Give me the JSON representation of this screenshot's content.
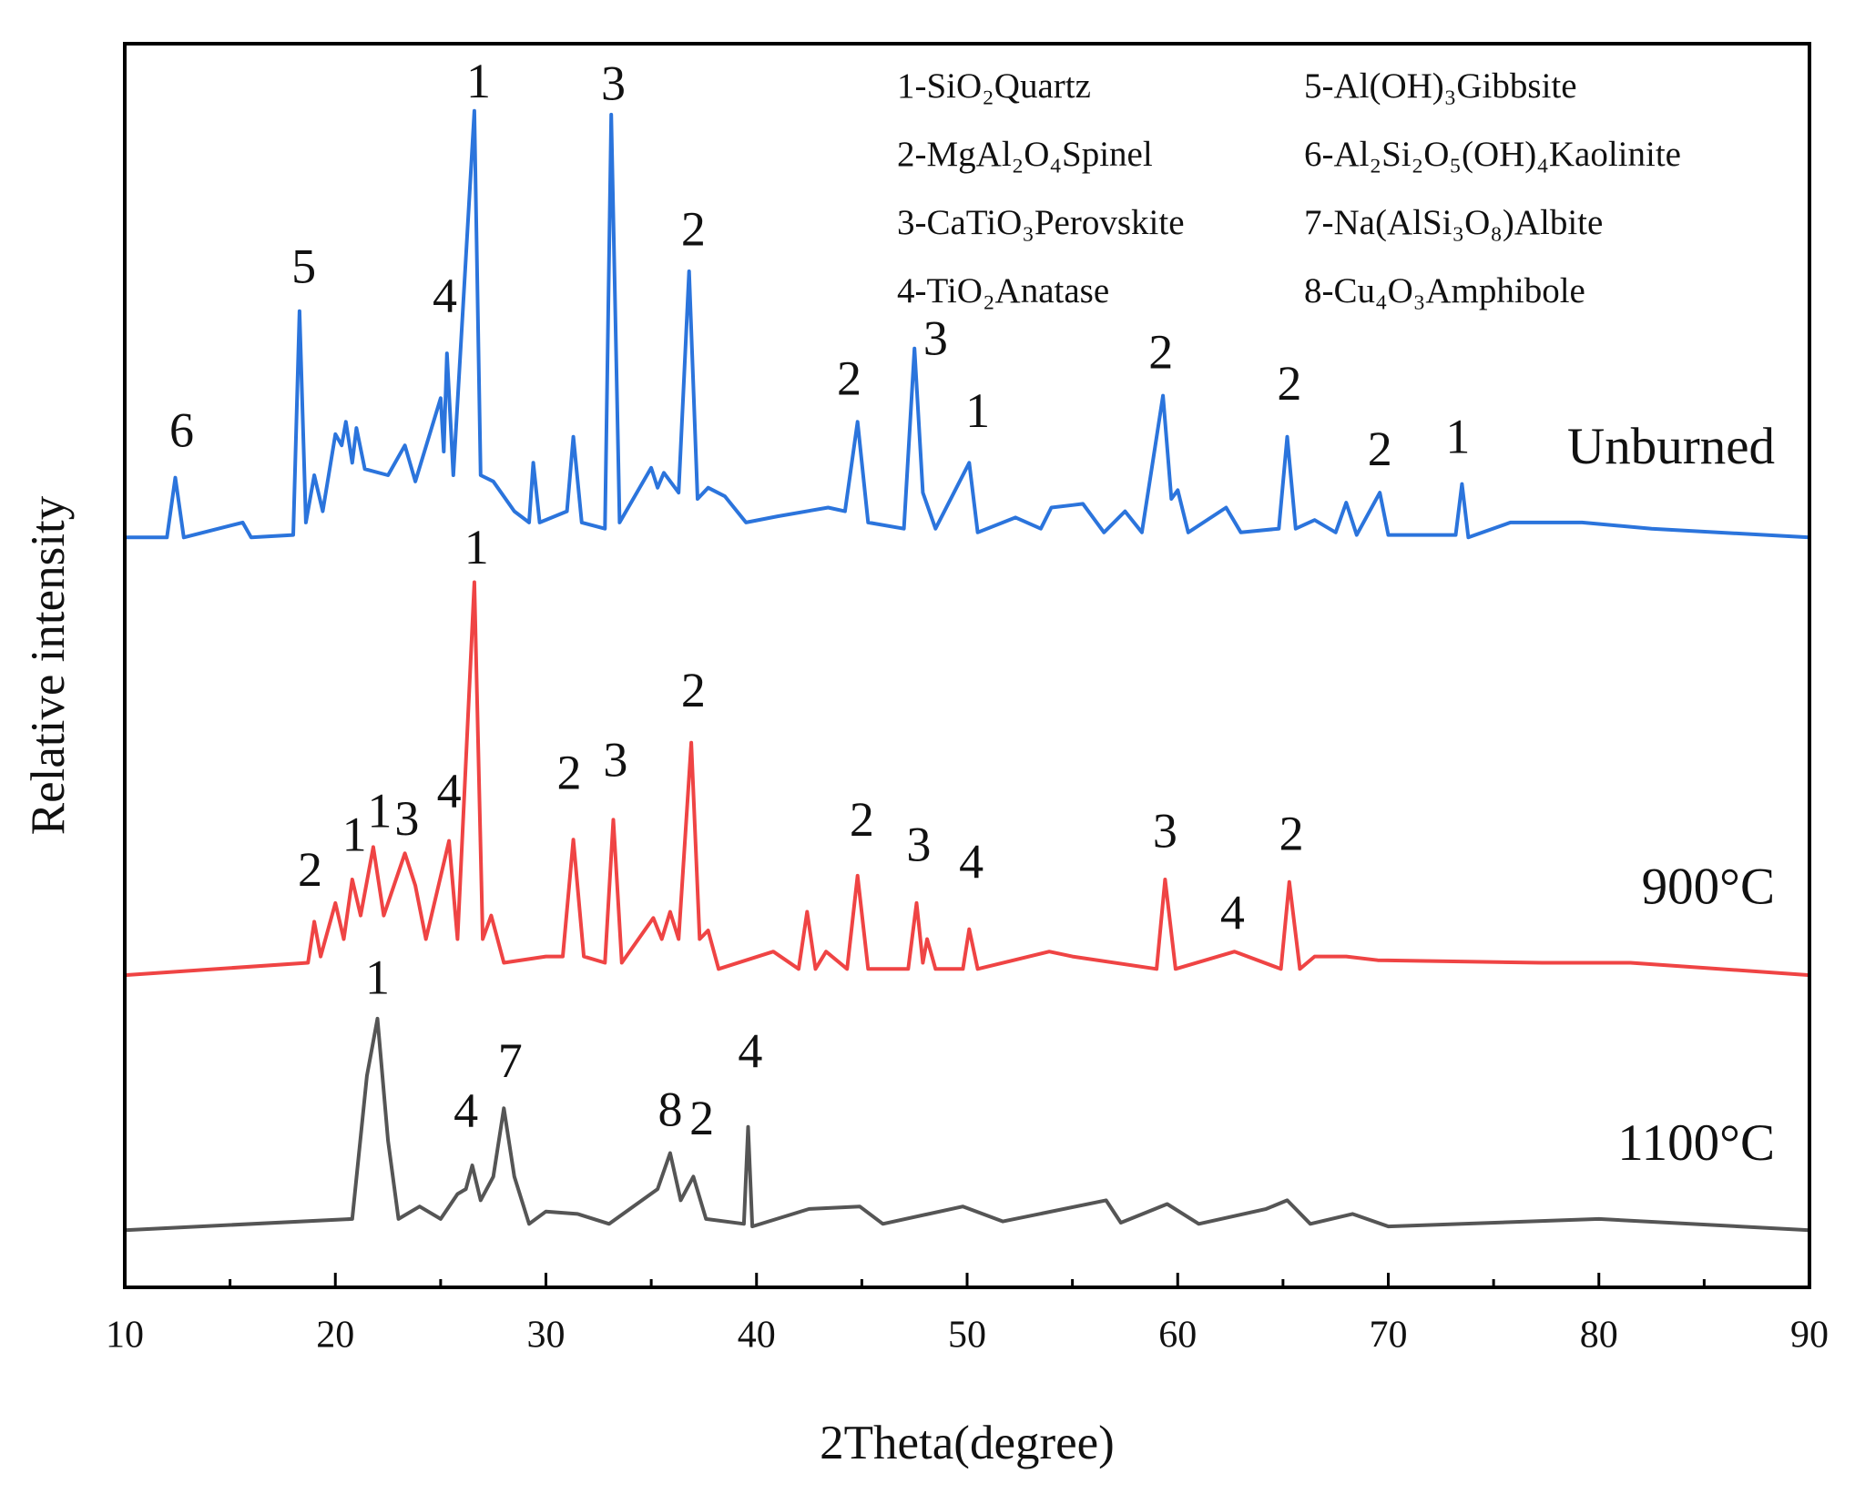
{
  "chart_data": {
    "type": "line",
    "x_label": "2Theta(degree)",
    "y_label": "Relative intensity",
    "xlim": [
      10,
      90
    ],
    "xticks": [
      10,
      20,
      30,
      40,
      50,
      60,
      70,
      80,
      90
    ],
    "xminorticks": [
      15,
      25,
      35,
      45,
      55,
      65,
      75,
      85
    ],
    "ylim": [
      0,
      100
    ],
    "legend_entries": [
      "1-SiO₂Quartz",
      "2-MgAl₂O₄Spinel",
      "3-CaTiO₃Perovskite",
      "4-TiO₂Anatase",
      "5-Al(OH)₃Gibbsite",
      "6-Al₂Si₂O₅(OH)₄Kaolinite",
      "7-Na(AlSi₃O₈)Albite",
      "8-Cu₄O₃Amphibole"
    ],
    "series": [
      {
        "name": "Unburned",
        "color": "#2b74dc",
        "x": [
          10,
          12.0,
          12.4,
          12.8,
          15.6,
          16,
          18.0,
          18.3,
          18.6,
          19.0,
          19.4,
          20.0,
          20.3,
          20.5,
          20.8,
          21.0,
          21.4,
          22.5,
          23.3,
          23.8,
          25.0,
          25.15,
          25.3,
          25.6,
          26.6,
          26.9,
          27.5,
          28.5,
          29.2,
          29.4,
          29.7,
          31.0,
          31.3,
          31.7,
          32.8,
          33.1,
          33.5,
          35.0,
          35.3,
          35.6,
          36.3,
          36.8,
          37.2,
          37.7,
          38.5,
          39.5,
          41,
          43.4,
          44.2,
          44.8,
          45.3,
          47.0,
          47.5,
          47.9,
          48.5,
          50.1,
          50.5,
          52.3,
          53.5,
          54,
          55,
          55.5,
          56.5,
          57.5,
          58.3,
          59.3,
          59.7,
          60.0,
          60.5,
          62.3,
          63,
          64.8,
          65.2,
          65.6,
          66.5,
          67.5,
          68,
          68.5,
          69.6,
          70,
          73.2,
          73.5,
          73.8,
          75.8,
          77.2,
          79.2,
          82.5,
          90
        ],
        "values": [
          60.3,
          60.3,
          65.1,
          60.3,
          61.5,
          60.3,
          60.5,
          78.5,
          61.5,
          65.3,
          62.4,
          68.6,
          67.7,
          69.6,
          66.3,
          69.1,
          65.8,
          65.3,
          67.7,
          64.8,
          71.5,
          67.2,
          75.1,
          65.3,
          94.6,
          65.3,
          64.8,
          62.4,
          61.5,
          66.3,
          61.5,
          62.4,
          68.4,
          61.5,
          61.0,
          94.3,
          61.5,
          65.9,
          64.3,
          65.5,
          63.9,
          81.7,
          63.4,
          64.3,
          63.6,
          61.5,
          62.0,
          62.7,
          62.4,
          69.6,
          61.5,
          61.0,
          75.5,
          63.9,
          61.0,
          66.3,
          60.7,
          61.9,
          61.0,
          62.7,
          62.9,
          63.0,
          60.7,
          62.4,
          60.7,
          71.7,
          63.4,
          64.1,
          60.7,
          62.7,
          60.7,
          61.0,
          68.4,
          61.0,
          61.7,
          60.7,
          63.1,
          60.5,
          63.9,
          60.5,
          60.5,
          64.6,
          60.3,
          61.5,
          61.5,
          61.5,
          61.0,
          60.3
        ],
        "peak_labels": [
          {
            "text": "6",
            "x": 12.7,
            "y": 68.5
          },
          {
            "text": "5",
            "x": 18.5,
            "y": 81.7
          },
          {
            "text": "4",
            "x": 25.2,
            "y": 79.3
          },
          {
            "text": "1",
            "x": 26.8,
            "y": 96.6
          },
          {
            "text": "3",
            "x": 33.2,
            "y": 96.4
          },
          {
            "text": "2",
            "x": 37.0,
            "y": 84.7
          },
          {
            "text": "2",
            "x": 44.4,
            "y": 72.7
          },
          {
            "text": "3",
            "x": 48.5,
            "y": 75.9
          },
          {
            "text": "1",
            "x": 50.5,
            "y": 70.1
          },
          {
            "text": "2",
            "x": 59.2,
            "y": 74.8
          },
          {
            "text": "2",
            "x": 65.3,
            "y": 72.3
          },
          {
            "text": "2",
            "x": 69.6,
            "y": 67.0
          },
          {
            "text": "1",
            "x": 73.3,
            "y": 68.0
          }
        ]
      },
      {
        "name": "900°C",
        "color": "#ef4444",
        "x": [
          10,
          18.7,
          19.0,
          19.3,
          20.0,
          20.4,
          20.8,
          21.2,
          21.8,
          22.3,
          23.3,
          23.8,
          24.3,
          25.4,
          25.8,
          26.6,
          27.0,
          27.4,
          28,
          30,
          30.8,
          31.3,
          31.8,
          32.8,
          33.2,
          33.6,
          35.1,
          35.5,
          35.9,
          36.3,
          36.9,
          37.3,
          37.7,
          38.2,
          40.8,
          42.0,
          42.4,
          42.8,
          43.3,
          44.3,
          44.8,
          45.3,
          47.2,
          47.6,
          47.9,
          48.1,
          48.5,
          49.8,
          50.1,
          50.5,
          53.9,
          55,
          59.0,
          59.4,
          59.9,
          62.7,
          64.9,
          65.3,
          65.8,
          66.5,
          68,
          69.5,
          77.3,
          81.5,
          90
        ],
        "values": [
          25.1,
          26.1,
          29.4,
          26.6,
          30.9,
          28.0,
          32.8,
          29.9,
          35.4,
          29.9,
          34.9,
          32.3,
          28.0,
          35.9,
          28.0,
          56.7,
          28.0,
          29.9,
          26.1,
          26.6,
          26.6,
          36.0,
          26.6,
          26.1,
          37.6,
          26.1,
          29.7,
          28.0,
          30.2,
          28.0,
          43.8,
          28.0,
          28.7,
          25.6,
          27.0,
          25.6,
          30.2,
          25.6,
          27.0,
          25.6,
          33.1,
          25.6,
          25.6,
          30.9,
          26.1,
          28.0,
          25.6,
          25.6,
          28.8,
          25.6,
          27.0,
          26.6,
          25.6,
          32.8,
          25.6,
          27.0,
          25.6,
          32.6,
          25.6,
          26.6,
          26.6,
          26.3,
          26.1,
          26.1,
          25.1
        ],
        "peak_labels": [
          {
            "text": "2",
            "x": 18.8,
            "y": 33.2
          },
          {
            "text": "1",
            "x": 20.9,
            "y": 36.0
          },
          {
            "text": "1",
            "x": 22.1,
            "y": 37.9
          },
          {
            "text": "3",
            "x": 23.4,
            "y": 37.3
          },
          {
            "text": "4",
            "x": 25.4,
            "y": 39.5
          },
          {
            "text": "1",
            "x": 26.7,
            "y": 59.1
          },
          {
            "text": "2",
            "x": 31.1,
            "y": 41.0
          },
          {
            "text": "3",
            "x": 33.3,
            "y": 42.0
          },
          {
            "text": "2",
            "x": 37.0,
            "y": 47.6
          },
          {
            "text": "2",
            "x": 45.0,
            "y": 37.2
          },
          {
            "text": "3",
            "x": 47.7,
            "y": 35.2
          },
          {
            "text": "4",
            "x": 50.2,
            "y": 33.8
          },
          {
            "text": "3",
            "x": 59.4,
            "y": 36.3
          },
          {
            "text": "4",
            "x": 62.6,
            "y": 29.7
          },
          {
            "text": "2",
            "x": 65.4,
            "y": 36.1
          }
        ]
      },
      {
        "name": "1100°C",
        "color": "#555555",
        "x": [
          10,
          20.8,
          21.5,
          22.0,
          22.5,
          23,
          24,
          25,
          25.8,
          26.2,
          26.5,
          26.9,
          27.5,
          28.0,
          28.5,
          29.2,
          30,
          31.5,
          33,
          35.3,
          35.9,
          36.4,
          37.0,
          37.6,
          39.4,
          39.6,
          39.8,
          42.5,
          44.9,
          46,
          49.8,
          51.7,
          56.6,
          57.3,
          59.5,
          61,
          64.2,
          65.2,
          66.3,
          68.3,
          70,
          80,
          90
        ],
        "values": [
          4.6,
          5.5,
          17.0,
          21.6,
          11.8,
          5.5,
          6.5,
          5.5,
          7.5,
          7.9,
          9.8,
          7.0,
          8.9,
          14.4,
          8.9,
          5.1,
          6.1,
          5.9,
          5.1,
          7.9,
          10.8,
          7.0,
          8.9,
          5.5,
          5.1,
          12.9,
          4.9,
          6.3,
          6.5,
          5.1,
          6.5,
          5.3,
          7.0,
          5.2,
          6.7,
          5.1,
          6.3,
          7.0,
          5.1,
          5.9,
          4.9,
          5.5,
          4.6
        ],
        "peak_labels": [
          {
            "text": "1",
            "x": 22.0,
            "y": 24.5
          },
          {
            "text": "4",
            "x": 26.2,
            "y": 13.8
          },
          {
            "text": "7",
            "x": 28.3,
            "y": 17.8
          },
          {
            "text": "8",
            "x": 35.9,
            "y": 13.9
          },
          {
            "text": "2",
            "x": 37.4,
            "y": 13.2
          },
          {
            "text": "4",
            "x": 39.7,
            "y": 18.6
          }
        ]
      }
    ]
  }
}
